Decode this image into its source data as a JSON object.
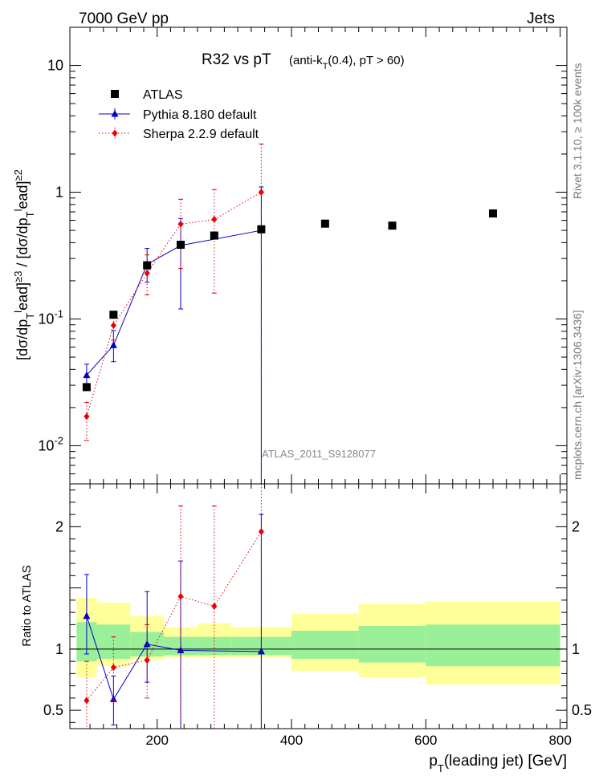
{
  "header": {
    "left": "7000 GeV pp",
    "right": "Jets"
  },
  "side_labels": {
    "top": "Rivet 3.1.10, ≥ 100k events",
    "bottom": "mcplots.cern.ch [arXiv:1306.3436]"
  },
  "chart_data": {
    "type": "scatter",
    "title_main": "R32 vs pT",
    "title_sub": "(anti-k_T(0.4), pT > 60)",
    "watermark": "ATLAS_2011_S9128077",
    "xlabel": "p_T(leading jet) [GeV]",
    "ylabel": "[dσ/dp_T^lead]^{≥3} / [dσ/dp_T^lead]^{≥2}",
    "ratio_ylabel": "Ratio to ATLAS",
    "xlim": [
      70,
      810
    ],
    "ylim": [
      0.005,
      20
    ],
    "yscale": "log",
    "ratio_ylim": [
      0.35,
      2.35
    ],
    "x_ticks": [
      200,
      400,
      600,
      800
    ],
    "y_ticks": [
      {
        "value": 0.01,
        "label": "10^-2"
      },
      {
        "value": 0.1,
        "label": "10^-1"
      },
      {
        "value": 1,
        "label": "1"
      },
      {
        "value": 10,
        "label": "10"
      }
    ],
    "ratio_ticks": [
      0.5,
      1,
      1.5,
      2
    ],
    "ratio_tick_labels": [
      {
        "value": 0.5,
        "label": "0.5"
      },
      {
        "value": 1,
        "label": "1"
      },
      {
        "value": 2,
        "label": "2"
      }
    ],
    "legend": [
      {
        "name": "ATLAS",
        "style": "data"
      },
      {
        "name": "Pythia 8.180 default",
        "style": "pythia"
      },
      {
        "name": "Sherpa 2.2.9 default",
        "style": "sherpa"
      }
    ],
    "atlas": {
      "name": "ATLAS",
      "color": "#000000",
      "x": [
        95,
        135,
        185,
        235,
        285,
        355,
        450,
        550,
        700
      ],
      "xlow": [
        80,
        110,
        160,
        210,
        260,
        310,
        400,
        500,
        600
      ],
      "xhigh": [
        110,
        160,
        210,
        260,
        310,
        400,
        500,
        600,
        800
      ],
      "y": [
        0.029,
        0.108,
        0.265,
        0.385,
        0.455,
        0.51,
        0.565,
        0.545,
        0.68
      ],
      "band_stat_low": [
        0.9,
        0.92,
        0.94,
        0.95,
        0.95,
        0.95,
        0.92,
        0.89,
        0.86
      ],
      "band_stat_high": [
        1.22,
        1.2,
        1.14,
        1.1,
        1.1,
        1.1,
        1.15,
        1.19,
        1.2
      ],
      "band_tot_low": [
        0.77,
        0.86,
        0.91,
        0.93,
        0.93,
        0.93,
        0.82,
        0.77,
        0.71
      ],
      "band_tot_high": [
        1.42,
        1.38,
        1.27,
        1.18,
        1.21,
        1.18,
        1.29,
        1.37,
        1.39
      ]
    },
    "series": [
      {
        "name": "Pythia 8.180 default",
        "color": "#0000cc",
        "x": [
          95,
          135,
          185,
          235,
          355
        ],
        "y": [
          0.036,
          0.062,
          0.27,
          0.38,
          0.5
        ],
        "ylow": [
          0.029,
          0.046,
          0.195,
          0.12,
          0.005
        ],
        "yhigh": [
          0.044,
          0.081,
          0.36,
          0.62,
          1.1
        ],
        "ratio": [
          1.27,
          0.59,
          1.04,
          0.99,
          0.98
        ],
        "ratio_low": [
          0.96,
          0.38,
          0.73,
          0.35,
          0.35
        ],
        "ratio_high": [
          1.61,
          0.78,
          1.47,
          1.72,
          2.1
        ]
      },
      {
        "name": "Sherpa 2.2.9 default",
        "color": "#ee0000",
        "x": [
          95,
          135,
          185,
          235,
          285,
          355
        ],
        "y": [
          0.017,
          0.089,
          0.23,
          0.56,
          0.61,
          1.0
        ],
        "ylow": [
          0.011,
          0.068,
          0.155,
          0.25,
          0.16,
          0.005
        ],
        "yhigh": [
          0.022,
          0.115,
          0.32,
          0.88,
          1.05,
          2.4
        ],
        "ratio": [
          0.58,
          0.85,
          0.91,
          1.43,
          1.35,
          1.96
        ],
        "ratio_low": [
          0.35,
          0.58,
          0.6,
          0.35,
          0.35,
          0.35
        ],
        "ratio_high": [
          0.9,
          1.1,
          1.2,
          2.17,
          2.17,
          2.35
        ]
      }
    ]
  }
}
